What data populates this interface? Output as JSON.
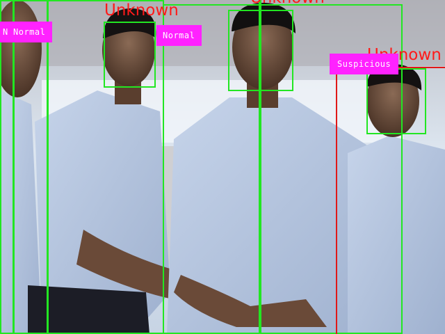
{
  "detections": {
    "identity_labels": [
      "Unknown",
      "Unknown",
      "Unknown"
    ],
    "status_labels": [
      "N",
      "Normal",
      "Normal",
      "Suspicious"
    ]
  },
  "colors": {
    "normal_box": "#22e622",
    "suspicious_box": "#e01818",
    "status_tag_bg": "#ff22ff",
    "identity_text": "#ff1a1a"
  }
}
